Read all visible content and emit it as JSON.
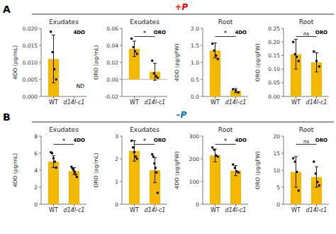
{
  "chart_data": [
    {
      "type": "bar",
      "title": "Exudates",
      "y_label": "4DO (pg/mL)",
      "section_title": "+P",
      "section_title_color": "#FF0000",
      "section_label": "A",
      "categories": [
        "WT",
        "d14l-c1"
      ],
      "values": [
        0.011,
        null
      ],
      "errors": [
        0.007,
        null
      ],
      "points": [
        [
          0.019,
          0.013,
          0.008,
          0.005
        ],
        []
      ],
      "color": "#F5B800",
      "ylim": [
        0,
        0.02
      ],
      "yticks": [
        {
          "value": 0,
          "label": "0.000"
        },
        0.005,
        {
          "value": 0.01,
          "label": "0.010"
        },
        0.015,
        {
          "value": 0.02,
          "label": "0.020"
        }
      ],
      "label": "4DO",
      "missing_label": "ND"
    },
    {
      "type": "bar",
      "title": "Exudates",
      "y_label": "ORO (pg/mL)",
      "categories": [
        "WT",
        "d14l-c1"
      ],
      "values": [
        0.036,
        0.009
      ],
      "errors": [
        0.009,
        0.01
      ],
      "points": [
        [
          0.048,
          0.038,
          0.033,
          0.03
        ],
        [
          0.022,
          0.007,
          0.004,
          0.002
        ]
      ],
      "color": "#F5B800",
      "ylim": [
        -0.02,
        0.06
      ],
      "yticks": [
        -0.02,
        {
          "value": 0,
          "label": "0.00"
        },
        0.02,
        0.04,
        0.06
      ],
      "label": "ORO",
      "significance": "*"
    },
    {
      "type": "bar",
      "title": "Root",
      "y_label": "4DO (pg/gFW)",
      "categories": [
        "WT",
        "d14l-c1"
      ],
      "values": [
        1.35,
        0.17
      ],
      "errors": [
        0.22,
        0.06
      ],
      "points": [
        [
          1.55,
          1.35,
          1.2,
          1.1
        ],
        [
          0.21,
          0.17,
          0.12
        ]
      ],
      "color": "#F5B800",
      "ylim": [
        0,
        2.0
      ],
      "yticks": [
        {
          "value": 0,
          "label": "0.0"
        },
        0.5,
        {
          "value": 1.0,
          "label": "1.0"
        },
        1.5,
        {
          "value": 2.0,
          "label": "2.0"
        }
      ],
      "label": "4DO",
      "significance": "*"
    },
    {
      "type": "bar",
      "title": "Root",
      "y_label": "ORO (pg/gFW)",
      "categories": [
        "WT",
        "d14l-c1"
      ],
      "values": [
        0.155,
        0.125
      ],
      "errors": [
        0.055,
        0.035
      ],
      "points": [
        [
          0.2,
          0.155,
          0.145,
          0.13
        ],
        [
          0.165,
          0.13,
          0.11
        ]
      ],
      "color": "#F5B800",
      "ylim": [
        0,
        0.25
      ],
      "yticks": [
        {
          "value": 0,
          "label": "0.00"
        },
        0.05,
        {
          "value": 0.1,
          "label": "0.10"
        },
        0.15,
        {
          "value": 0.2,
          "label": "0.20"
        },
        0.25
      ],
      "label": "ORO",
      "significance": "ns"
    },
    {
      "type": "bar",
      "title": "Exudates",
      "y_label": "4DO (pg/mL)",
      "section_title": "–P",
      "section_title_color": "#0070C0",
      "section_label": "B",
      "categories": [
        "WT",
        "d14l-c1"
      ],
      "values": [
        5.0,
        3.9
      ],
      "errors": [
        0.7,
        0.4
      ],
      "points": [
        [
          6.1,
          6.0,
          5.4,
          5.0,
          4.3
        ],
        [
          4.4,
          4.2,
          4.0,
          3.8,
          3.5,
          3.2
        ]
      ],
      "color": "#F5B800",
      "ylim": [
        0,
        8
      ],
      "yticks": [
        0,
        2,
        4,
        6,
        8
      ],
      "label": "4DO",
      "significance": "*"
    },
    {
      "type": "bar",
      "title": "Exudates",
      "y_label": "ORO (pg/mL)",
      "categories": [
        "WT",
        "d14l-c1"
      ],
      "values": [
        2.35,
        1.5
      ],
      "errors": [
        0.45,
        0.55
      ],
      "points": [
        [
          2.8,
          2.5,
          2.3,
          2.1,
          2.0
        ],
        [
          2.2,
          2.1,
          1.8,
          1.6,
          1.4,
          0.5
        ]
      ],
      "color": "#F5B800",
      "ylim": [
        0,
        3
      ],
      "yticks": [
        0,
        1,
        2,
        3
      ],
      "label": "ORO",
      "significance": "*"
    },
    {
      "type": "bar",
      "title": "Root",
      "y_label": "4DO (pg/gFW)",
      "categories": [
        "WT",
        "d14l-c1"
      ],
      "values": [
        215,
        148
      ],
      "errors": [
        28,
        22
      ],
      "points": [
        [
          250,
          240,
          215,
          210
        ],
        [
          175,
          160,
          145,
          140
        ]
      ],
      "color": "#F5B800",
      "ylim": [
        0,
        300
      ],
      "yticks": [
        0,
        100,
        200,
        300
      ],
      "label": "4DO",
      "significance": "*"
    },
    {
      "type": "bar",
      "title": "Root",
      "y_label": "ORO (pg/gFW)",
      "categories": [
        "WT",
        "d14l-c1"
      ],
      "values": [
        9.5,
        8.0
      ],
      "errors": [
        4.5,
        3.0
      ],
      "points": [
        [
          13.5,
          12.5,
          9.5,
          4.0
        ],
        [
          12.5,
          9.0,
          6.5,
          5.5
        ]
      ],
      "color": "#F5B800",
      "ylim": [
        0,
        20
      ],
      "yticks": [
        0,
        5,
        10,
        15,
        20
      ],
      "label": "ORO",
      "significance": "ns"
    }
  ]
}
